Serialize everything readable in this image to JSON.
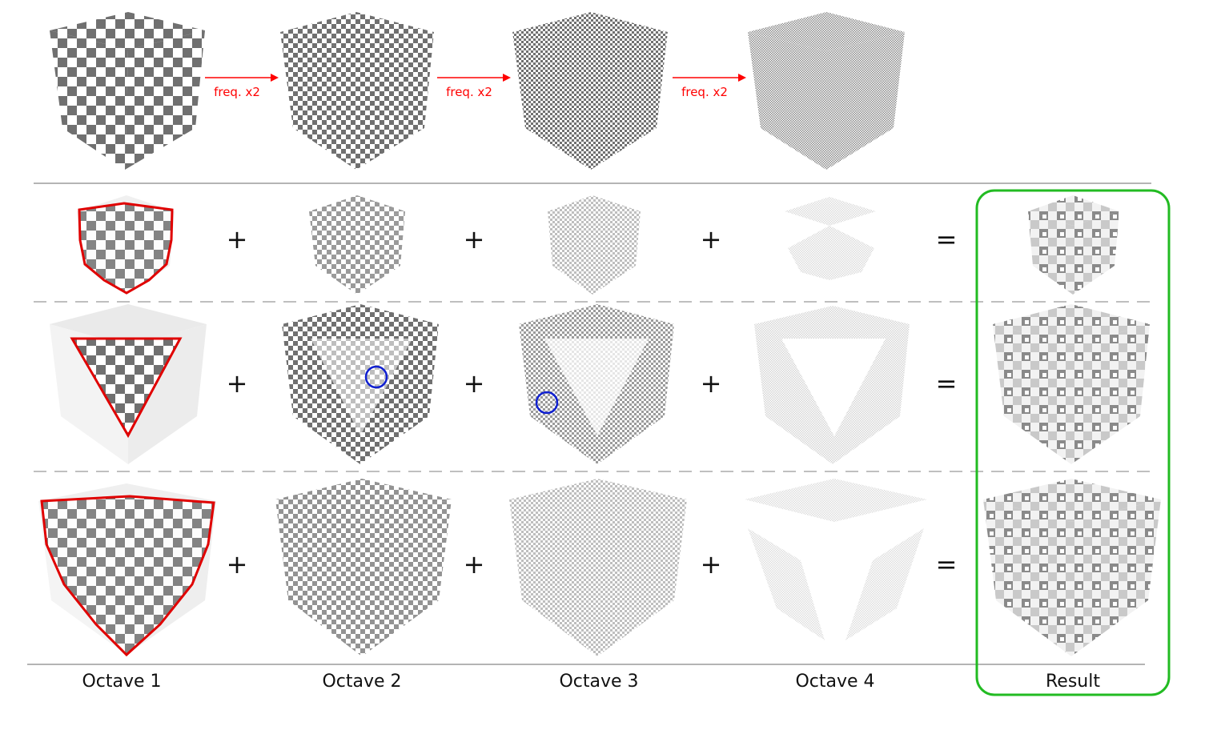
{
  "top_row": {
    "arrow_label": "freq. x2",
    "cube_checker_counts": [
      8,
      16,
      32,
      64
    ],
    "arrow_color": "#ff0000"
  },
  "rows": {
    "operators": {
      "plus": "+",
      "equals": "="
    },
    "count": 3
  },
  "column_labels": {
    "octave_1": "Octave 1",
    "octave_2": "Octave 2",
    "octave_3": "Octave 3",
    "octave_4": "Octave 4",
    "result": "Result"
  },
  "colors": {
    "checker_dark": "#6f6f6f",
    "checker_light": "#ffffff",
    "outline_red": "#e00000",
    "circle_blue": "#1020d0",
    "result_box_green": "#22bb22",
    "divider": "#888888"
  }
}
